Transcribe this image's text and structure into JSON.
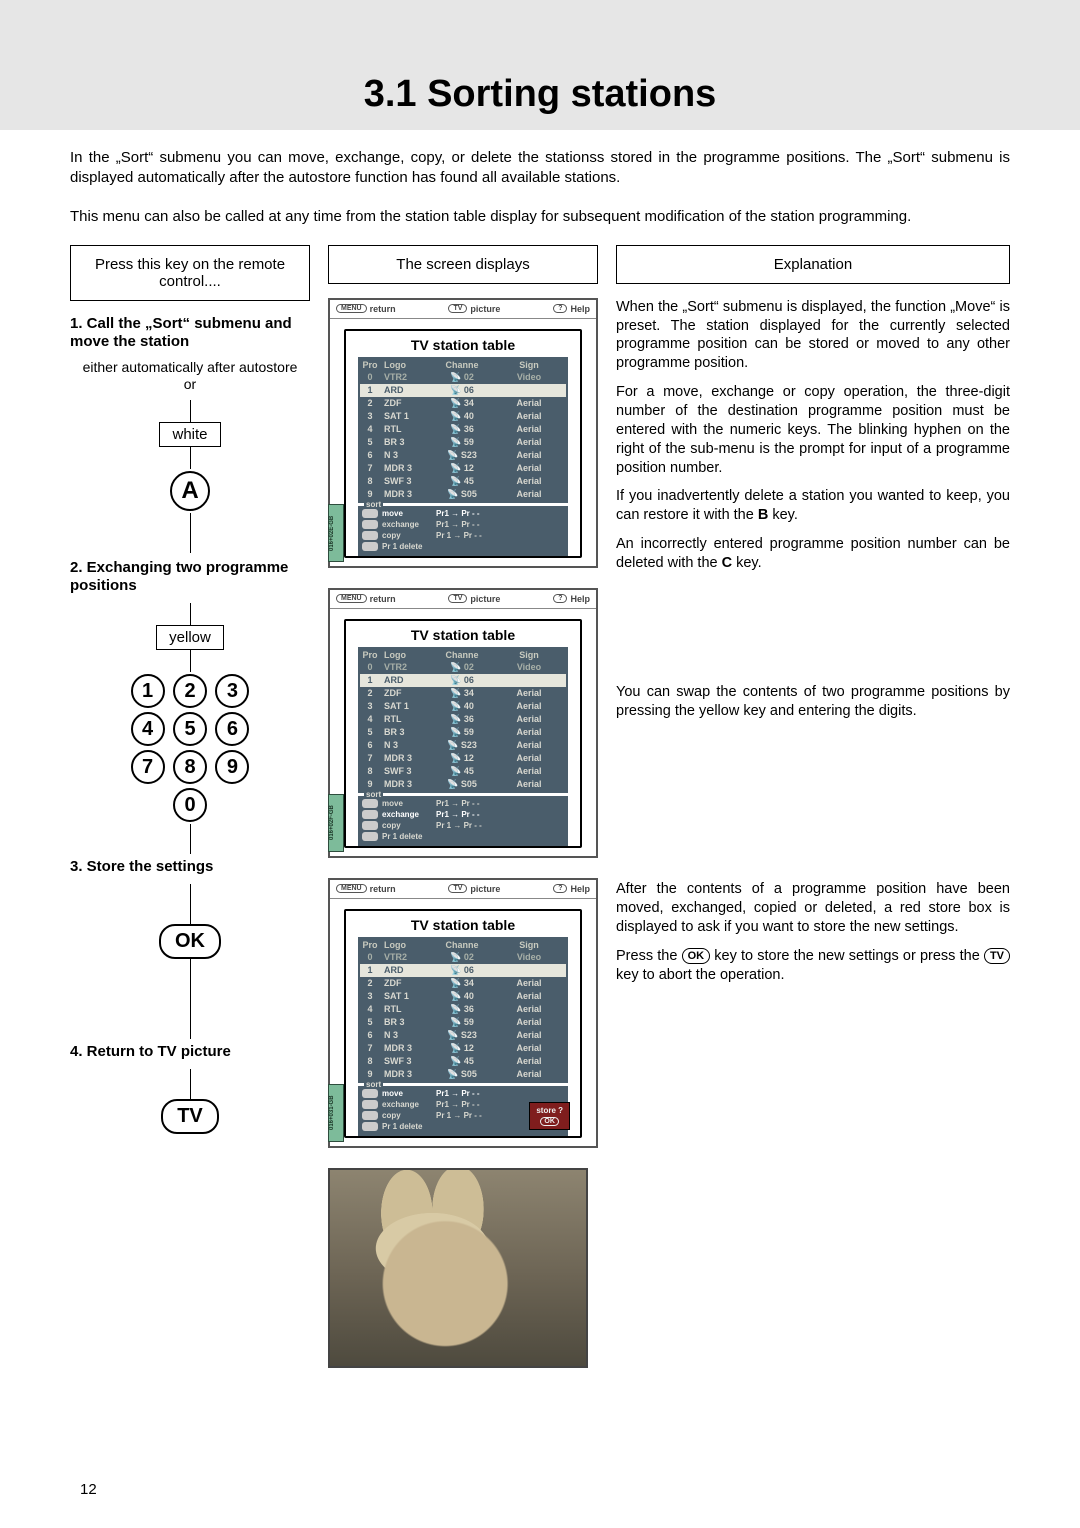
{
  "heading": "3.1 Sorting stations",
  "intro1": "In the „Sort“ submenu you can move, exchange, copy, or delete the stationss stored in the programme positions. The „Sort“ submenu is displayed automatically after the autostore function has found all available stations.",
  "intro2": "This menu can also be called at any time from the station table display for subsequent modification of the station programming.",
  "col_headers": {
    "left": "Press this key on the remote control....",
    "mid": "The screen displays",
    "right": "Explanation"
  },
  "steps": {
    "s1": {
      "title": "1. Call the „Sort“ submenu and move the station",
      "sub": "either automatically after autostore\nor",
      "tag": "white",
      "btn": "A"
    },
    "s2": {
      "title": "2. Exchanging two programme positions",
      "tag": "yellow",
      "digits": [
        "1",
        "2",
        "3",
        "4",
        "5",
        "6",
        "7",
        "8",
        "9",
        "0"
      ]
    },
    "s3": {
      "title": "3. Store the settings",
      "btn": "OK"
    },
    "s4": {
      "title": "4. Return to TV picture",
      "btn": "TV"
    }
  },
  "osd": {
    "topbar": {
      "left": "return",
      "left_pill": "MENU",
      "mid_pill": "TV",
      "mid": "picture",
      "right_pill": "?",
      "right": "Help"
    },
    "title": "TV station table",
    "cols": [
      "Pro",
      "Logo",
      "Channe",
      "Sign"
    ],
    "rows": [
      {
        "pro": "0",
        "logo": "VTR2",
        "ch": "02",
        "sig": "Video",
        "first": true
      },
      {
        "pro": "1",
        "logo": "ARD",
        "ch": "06",
        "sig": "",
        "sel": true
      },
      {
        "pro": "2",
        "logo": "ZDF",
        "ch": "34",
        "sig": "Aerial"
      },
      {
        "pro": "3",
        "logo": "SAT 1",
        "ch": "40",
        "sig": "Aerial"
      },
      {
        "pro": "4",
        "logo": "RTL",
        "ch": "36",
        "sig": "Aerial"
      },
      {
        "pro": "5",
        "logo": "BR 3",
        "ch": "59",
        "sig": "Aerial"
      },
      {
        "pro": "6",
        "logo": "N 3",
        "ch": "S23",
        "sig": "Aerial"
      },
      {
        "pro": "7",
        "logo": "MDR 3",
        "ch": "12",
        "sig": "Aerial"
      },
      {
        "pro": "8",
        "logo": "SWF 3",
        "ch": "45",
        "sig": "Aerial"
      },
      {
        "pro": "9",
        "logo": "MDR 3",
        "ch": "S05",
        "sig": "Aerial"
      }
    ],
    "sort_label": "sort",
    "sort": [
      {
        "k": "move",
        "v": "Pr1  →  Pr - -"
      },
      {
        "k": "exchange",
        "v": "Pr1  →  Pr - -"
      },
      {
        "k": "copy",
        "v": "Pr 1 → Pr - -"
      },
      {
        "k": "Pr  1   delete",
        "v": ""
      }
    ],
    "side_id1": "016+02E-GB",
    "side_id2": "016+02F-GB",
    "side_id3": "016+031-GB",
    "store": "store ?",
    "store_ok": "OK"
  },
  "explanation": {
    "p1": "When the „Sort“ submenu is displayed, the function „Move“ is preset. The station displayed for the currently selected programme position can be stored or moved to any other programme position.",
    "p2": "For a move, exchange or copy operation, the three-digit number of the destination programme position must be entered with the numeric keys. The blinking hyphen on the right of the sub-menu is the prompt for input of a programme position number.",
    "p3_a": "If you inadvertently delete a station you wanted to keep, you can restore it with the ",
    "p3_b": "B",
    "p3_c": " key.",
    "p4_a": "An incorrectly entered programme position number can be deleted with the ",
    "p4_b": "C",
    "p4_c": " key.",
    "p5": "You can swap the contents of two programme positions by pressing the yellow key and entering the digits.",
    "p6": "After the contents of a programme position have been moved, exchanged, copied or deleted, a red store box is displayed to ask if you want to store the new settings.",
    "p7_a": "Press the ",
    "p7_ok": "OK",
    "p7_b": " key to store the new settings or press the ",
    "p7_tv": "TV",
    "p7_c": " key to abort the operation."
  },
  "pagenum": "12"
}
